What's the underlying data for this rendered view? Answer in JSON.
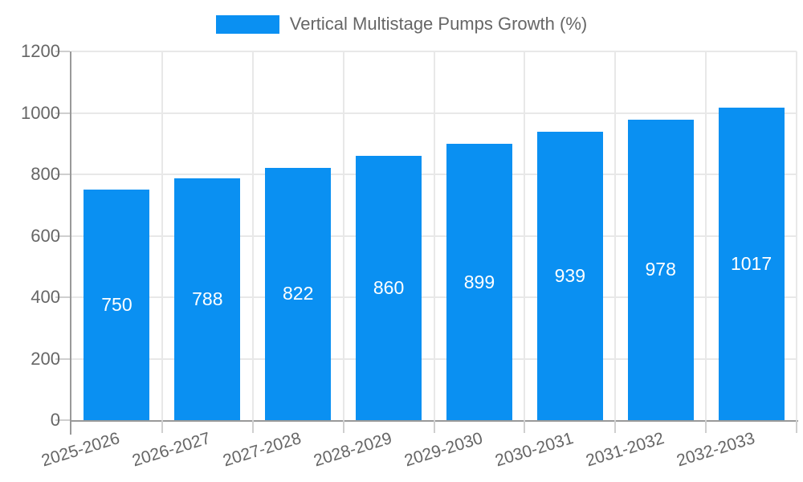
{
  "legend": {
    "position": "top"
  },
  "colors": {
    "bar": "#0a90f2",
    "grid": "#e8e8e8",
    "tick": "#cfcfcf",
    "axis": "#999999",
    "label_text": "#666666",
    "value_text": "#ffffff",
    "background": "#ffffff"
  },
  "chart_data": {
    "type": "bar",
    "title": "",
    "series_name": "Vertical Multistage Pumps Growth (%)",
    "categories": [
      "2025-2026",
      "2026-2027",
      "2027-2028",
      "2028-2029",
      "2029-2030",
      "2030-2031",
      "2031-2032",
      "2032-2033"
    ],
    "values": [
      750,
      788,
      822,
      860,
      899,
      939,
      978,
      1017
    ],
    "xlabel": "",
    "ylabel": "",
    "ylim": [
      0,
      1200
    ],
    "yticks": [
      0,
      200,
      400,
      600,
      800,
      1000,
      1200
    ],
    "grid": true,
    "legend_position": "top",
    "x_tick_rotation_deg": -17,
    "value_labels_inside_bars": true
  }
}
